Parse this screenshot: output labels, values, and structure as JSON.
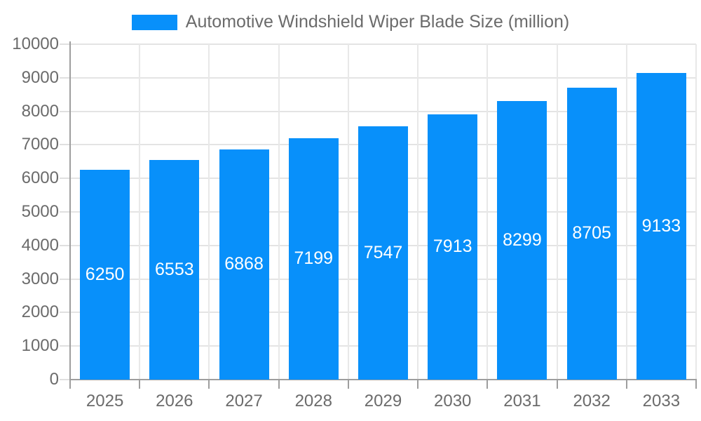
{
  "legend": {
    "label": "Automotive Windshield Wiper Blade Size (million)",
    "swatch_color": "#0890fa"
  },
  "chart_data": {
    "type": "bar",
    "title": "Automotive Windshield Wiper Blade Size (million)",
    "categories": [
      "2025",
      "2026",
      "2027",
      "2028",
      "2029",
      "2030",
      "2031",
      "2032",
      "2033"
    ],
    "values": [
      6250,
      6553,
      6868,
      7199,
      7547,
      7913,
      8299,
      8705,
      9133
    ],
    "series": [
      {
        "name": "Automotive Windshield Wiper Blade Size (million)",
        "values": [
          6250,
          6553,
          6868,
          7199,
          7547,
          7913,
          8299,
          8705,
          9133
        ]
      }
    ],
    "xlabel": "",
    "ylabel": "",
    "ylim": [
      0,
      10000
    ],
    "ytick_step": 1000,
    "yticks": [
      0,
      1000,
      2000,
      3000,
      4000,
      5000,
      6000,
      7000,
      8000,
      9000,
      10000
    ],
    "grid": true,
    "legend_position": "top",
    "value_labels": "inside-center",
    "colors": {
      "bar": "#0890fa",
      "value_label": "#ffffff",
      "axis_text": "#6b6b6b",
      "axis_line": "#9e9e9e",
      "gridline": "#e4e4e4",
      "background": "#ffffff"
    }
  }
}
